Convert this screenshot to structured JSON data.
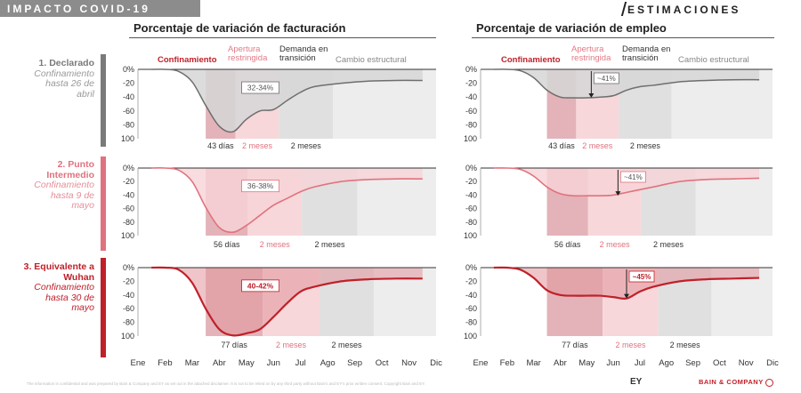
{
  "header": {
    "section_title": "IMPACTO COVID-19",
    "right_title": "ESTIMACIONES"
  },
  "columns": [
    {
      "title": "Porcentaje de variación de facturación"
    },
    {
      "title": "Porcentaje de variación de empleo"
    }
  ],
  "phases": {
    "confinamiento": "Confinamiento",
    "apertura": [
      "Apertura",
      "restringida"
    ],
    "demanda": [
      "Demanda en",
      "transición"
    ],
    "cambio": "Cambio estructural"
  },
  "scenarios": [
    {
      "name": [
        "1. Declarado"
      ],
      "desc": [
        "Confinamiento",
        "hasta 26 de",
        "abril"
      ],
      "color": "#7a7a7a",
      "desc_color": "#9a9a9a"
    },
    {
      "name": [
        "2. Punto",
        "Intermedio"
      ],
      "desc": [
        "Confinamiento",
        "hasta 9 de",
        "mayo"
      ],
      "color": "#e0727d",
      "desc_color": "#e58f98"
    },
    {
      "name": [
        "3. Equivalente a",
        "Wuhan"
      ],
      "desc": [
        "Confinamiento",
        "hasta 30 de",
        "mayo"
      ],
      "color": "#c0202a",
      "desc_color": "#c0202a"
    }
  ],
  "months": [
    "Ene",
    "Feb",
    "Mar",
    "Abr",
    "May",
    "Jun",
    "Jul",
    "Ago",
    "Sep",
    "Oct",
    "Nov",
    "Dic"
  ],
  "colors": {
    "gray_fill": "#cfcfcf",
    "pink": "#f3c8cc",
    "red": "#c0202a",
    "conf_dark": "#d99aa1",
    "apertura": "#f7d7da",
    "demanda": "#e0e0e0",
    "cambio": "#ededed"
  },
  "footer": {
    "disclaimer": "The information is confidential and was prepared by Bain & Company and EY as set out in the attached disclaimer. It is not to be relied on by any third party without Bain's and EY's prior written consent. Copyright Bain and EY.",
    "ey": "EY",
    "bain": "BAIN & COMPANY"
  },
  "chart_data": [
    {
      "type": "area",
      "title": "Porcentaje de variación de facturación",
      "subtitle": "1. Declarado",
      "ylim": [
        -100,
        0
      ],
      "yticks": [
        "0%",
        "-20",
        "-40",
        "-60",
        "-80",
        "100"
      ],
      "x": [
        1,
        1.5,
        2,
        2.5,
        3,
        3.5,
        4,
        4.5,
        5,
        5.5,
        6,
        6.5,
        7,
        8,
        9,
        10,
        11
      ],
      "values": [
        0,
        0,
        -3,
        -18,
        -52,
        -82,
        -90,
        -72,
        -60,
        -58,
        -45,
        -33,
        -25,
        -20,
        -17,
        -16,
        -16
      ],
      "bands": [
        {
          "from": 3,
          "to": 4.1,
          "style": "conf"
        },
        {
          "from": 4.1,
          "to": 5.7,
          "style": "apertura"
        },
        {
          "from": 5.7,
          "to": 7.7,
          "style": "demanda"
        },
        {
          "from": 7.7,
          "to": 11.5,
          "style": "cambio"
        }
      ],
      "band_labels": [
        "43 días",
        "2 meses",
        "2 meses"
      ],
      "annotation": "32-34%"
    },
    {
      "type": "area",
      "title": "Porcentaje de variación de empleo",
      "subtitle": "1. Declarado",
      "ylim": [
        -100,
        0
      ],
      "yticks": [
        "0%",
        "-20",
        "-40",
        "-60",
        "-80",
        "100"
      ],
      "x": [
        1,
        1.5,
        2,
        2.5,
        3,
        3.5,
        4,
        4.5,
        5,
        5.5,
        6,
        6.5,
        7,
        8,
        9,
        10,
        11
      ],
      "values": [
        0,
        0,
        -2,
        -12,
        -30,
        -40,
        -41,
        -41,
        -40,
        -38,
        -30,
        -25,
        -23,
        -18,
        -16,
        -15,
        -15
      ],
      "bands": [
        {
          "from": 3,
          "to": 4.1,
          "style": "conf"
        },
        {
          "from": 4.1,
          "to": 5.7,
          "style": "apertura"
        },
        {
          "from": 5.7,
          "to": 7.7,
          "style": "demanda"
        },
        {
          "from": 7.7,
          "to": 11.5,
          "style": "cambio"
        }
      ],
      "band_labels": [
        "43 días",
        "2 meses",
        "2 meses"
      ],
      "annotation": "~41%"
    },
    {
      "type": "area",
      "title": "Porcentaje de variación de facturación",
      "subtitle": "2. Punto Intermedio",
      "ylim": [
        -100,
        0
      ],
      "yticks": [
        "0%",
        "-20",
        "-40",
        "-60",
        "-80",
        "100"
      ],
      "x": [
        1,
        1.5,
        2,
        2.5,
        3,
        3.5,
        4,
        4.5,
        5,
        5.5,
        6,
        6.5,
        7,
        8,
        9,
        10,
        11
      ],
      "values": [
        0,
        0,
        -3,
        -20,
        -58,
        -88,
        -95,
        -85,
        -70,
        -55,
        -45,
        -35,
        -28,
        -20,
        -17,
        -16,
        -16
      ],
      "bands": [
        {
          "from": 3,
          "to": 4.55,
          "style": "conf"
        },
        {
          "from": 4.55,
          "to": 6.55,
          "style": "apertura"
        },
        {
          "from": 6.55,
          "to": 8.6,
          "style": "demanda"
        },
        {
          "from": 8.6,
          "to": 11.5,
          "style": "cambio"
        }
      ],
      "band_labels": [
        "56 días",
        "2 meses",
        "2 meses"
      ],
      "annotation": "36-38%"
    },
    {
      "type": "area",
      "title": "Porcentaje de variación de empleo",
      "subtitle": "2. Punto Intermedio",
      "ylim": [
        -100,
        0
      ],
      "yticks": [
        "0%",
        "-20",
        "-40",
        "-60",
        "-80",
        "100"
      ],
      "x": [
        1,
        1.5,
        2,
        2.5,
        3,
        3.5,
        4,
        4.5,
        5,
        5.5,
        6,
        6.5,
        7,
        8,
        9,
        10,
        11
      ],
      "values": [
        0,
        0,
        -2,
        -12,
        -28,
        -38,
        -41,
        -41,
        -41,
        -40,
        -36,
        -32,
        -28,
        -20,
        -17,
        -16,
        -15
      ],
      "bands": [
        {
          "from": 3,
          "to": 4.55,
          "style": "conf"
        },
        {
          "from": 4.55,
          "to": 6.55,
          "style": "apertura"
        },
        {
          "from": 6.55,
          "to": 8.6,
          "style": "demanda"
        },
        {
          "from": 8.6,
          "to": 11.5,
          "style": "cambio"
        }
      ],
      "band_labels": [
        "56 días",
        "2 meses",
        "2 meses"
      ],
      "annotation": "~41%"
    },
    {
      "type": "area",
      "title": "Porcentaje de variación de facturación",
      "subtitle": "3. Equivalente a Wuhan",
      "ylim": [
        -100,
        0
      ],
      "yticks": [
        "0%",
        "-20",
        "-40",
        "-60",
        "-80",
        "100"
      ],
      "x": [
        1,
        1.5,
        2,
        2.5,
        3,
        3.5,
        4,
        4.5,
        5,
        5.5,
        6,
        6.5,
        7,
        8,
        9,
        10,
        11
      ],
      "values": [
        0,
        0,
        -3,
        -22,
        -60,
        -90,
        -99,
        -96,
        -90,
        -72,
        -52,
        -35,
        -28,
        -20,
        -17,
        -16,
        -16
      ],
      "bands": [
        {
          "from": 3,
          "to": 5.1,
          "style": "conf"
        },
        {
          "from": 5.1,
          "to": 7.2,
          "style": "apertura"
        },
        {
          "from": 7.2,
          "to": 9.2,
          "style": "demanda"
        },
        {
          "from": 9.2,
          "to": 11.5,
          "style": "cambio"
        }
      ],
      "band_labels": [
        "77 días",
        "2 meses",
        "2 meses"
      ],
      "annotation": "40-42%"
    },
    {
      "type": "area",
      "title": "Porcentaje de variación de empleo",
      "subtitle": "3. Equivalente a Wuhan",
      "ylim": [
        -100,
        0
      ],
      "yticks": [
        "0%",
        "-20",
        "-40",
        "-60",
        "-80",
        "100"
      ],
      "x": [
        1,
        1.5,
        2,
        2.5,
        3,
        3.5,
        4,
        4.5,
        5,
        5.5,
        6,
        6.5,
        7,
        8,
        9,
        10,
        11
      ],
      "values": [
        0,
        0,
        -3,
        -15,
        -33,
        -40,
        -41,
        -41,
        -41,
        -43,
        -45,
        -35,
        -28,
        -20,
        -17,
        -16,
        -15
      ],
      "bands": [
        {
          "from": 3,
          "to": 5.1,
          "style": "conf"
        },
        {
          "from": 5.1,
          "to": 7.2,
          "style": "apertura"
        },
        {
          "from": 7.2,
          "to": 9.2,
          "style": "demanda"
        },
        {
          "from": 9.2,
          "to": 11.5,
          "style": "cambio"
        }
      ],
      "band_labels": [
        "77 días",
        "2 meses",
        "2 meses"
      ],
      "annotation": "~45%"
    }
  ]
}
